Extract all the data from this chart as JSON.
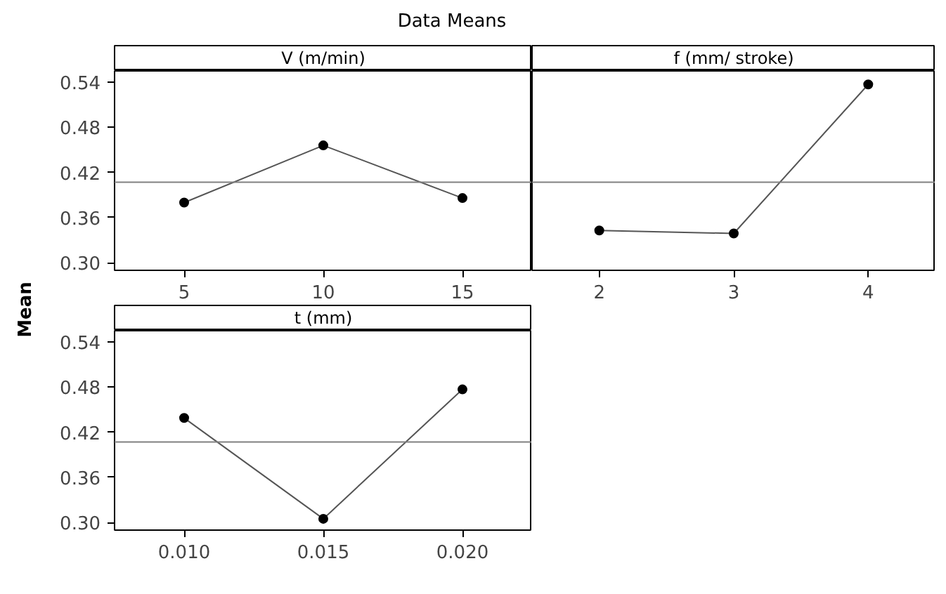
{
  "chart_data": [
    {
      "type": "line",
      "title": "V (m/min)",
      "ylabel": "Mean",
      "annotations": [
        "Data Means"
      ],
      "categories": [
        "5",
        "10",
        "15"
      ],
      "values": [
        0.38,
        0.456,
        0.386
      ],
      "color": "#000000",
      "marker": "circle",
      "ylim": [
        0.29,
        0.555
      ],
      "yticks": [
        {
          "value": 0.3,
          "label": "0.30"
        },
        {
          "value": 0.36,
          "label": "0.36"
        },
        {
          "value": 0.42,
          "label": "0.42"
        },
        {
          "value": 0.48,
          "label": "0.48"
        },
        {
          "value": 0.54,
          "label": "0.54"
        }
      ],
      "ref_lines": [
        {
          "axis": "y",
          "value": 0.407,
          "label": null
        }
      ]
    },
    {
      "type": "line",
      "title": "f (mm/ stroke)",
      "categories": [
        "2",
        "3",
        "4"
      ],
      "values": [
        0.343,
        0.339,
        0.537
      ],
      "color": "#000000",
      "marker": "circle",
      "ylim": [
        0.29,
        0.555
      ],
      "ref_lines": [
        {
          "axis": "y",
          "value": 0.407,
          "label": null
        }
      ],
      "tick_labels": "x"
    },
    {
      "type": "line",
      "title": "t (mm)",
      "categories": [
        "0.010",
        "0.015",
        "0.020"
      ],
      "values": [
        0.439,
        0.305,
        0.477
      ],
      "color": "#000000",
      "marker": "circle",
      "ylim": [
        0.29,
        0.555
      ],
      "yticks": [
        {
          "value": 0.3,
          "label": "0.30"
        },
        {
          "value": 0.36,
          "label": "0.36"
        },
        {
          "value": 0.42,
          "label": "0.42"
        },
        {
          "value": 0.48,
          "label": "0.48"
        },
        {
          "value": 0.54,
          "label": "0.54"
        }
      ],
      "ref_lines": [
        {
          "axis": "y",
          "value": 0.407,
          "label": null
        }
      ]
    }
  ]
}
